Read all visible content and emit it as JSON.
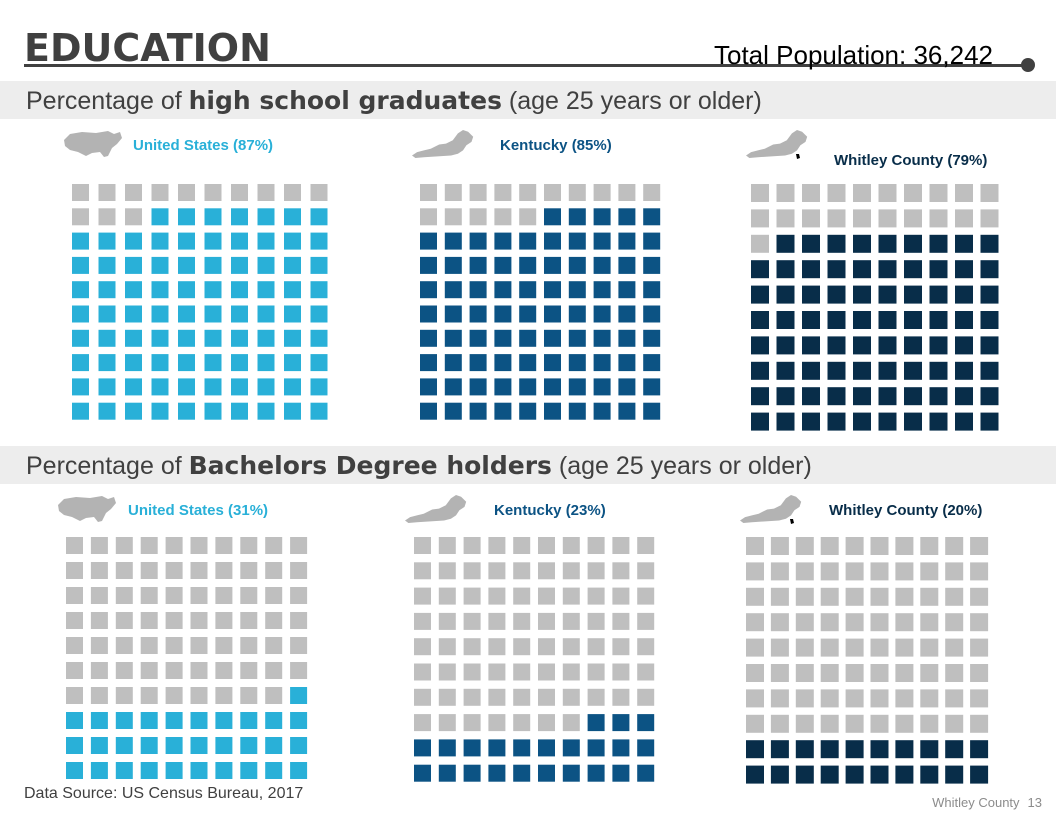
{
  "header": {
    "title": "EDUCATION",
    "total_population": "Total Population: 36,242"
  },
  "sections": [
    {
      "prefix": "Percentage of ",
      "bold": "high school graduates",
      "suffix": " (age 25 years or older)"
    },
    {
      "prefix": "Percentage of ",
      "bold": "Bachelors Degree holders",
      "suffix": " (age 25 years or older)"
    }
  ],
  "colors": {
    "empty": "#bfbfbf",
    "us": "#29b0d8",
    "ky": "#0c5384",
    "county": "#082d49",
    "map": "#b3b3b3",
    "county_mark": "#000000"
  },
  "chart_data": [
    {
      "type": "waffle",
      "section": "high school graduates",
      "label": "United States (87%)",
      "region": "United States",
      "value": 87,
      "total": 100,
      "color_key": "us"
    },
    {
      "type": "waffle",
      "section": "high school graduates",
      "label": "Kentucky (85%)",
      "region": "Kentucky",
      "value": 85,
      "total": 100,
      "color_key": "ky"
    },
    {
      "type": "waffle",
      "section": "high school graduates",
      "label": "Whitley County (79%)",
      "region": "Whitley County",
      "value": 79,
      "total": 100,
      "color_key": "county"
    },
    {
      "type": "waffle",
      "section": "Bachelors Degree holders",
      "label": "United States (31%)",
      "region": "United States",
      "value": 31,
      "total": 100,
      "color_key": "us"
    },
    {
      "type": "waffle",
      "section": "Bachelors Degree holders",
      "label": "Kentucky (23%)",
      "region": "Kentucky",
      "value": 23,
      "total": 100,
      "color_key": "ky"
    },
    {
      "type": "waffle",
      "section": "Bachelors Degree holders",
      "label": "Whitley County (20%)",
      "region": "Whitley County",
      "value": 20,
      "total": 100,
      "color_key": "county"
    }
  ],
  "footer": {
    "source": "Data Source: US Census Bureau, 2017",
    "org": "Whitley County",
    "page": "13"
  }
}
